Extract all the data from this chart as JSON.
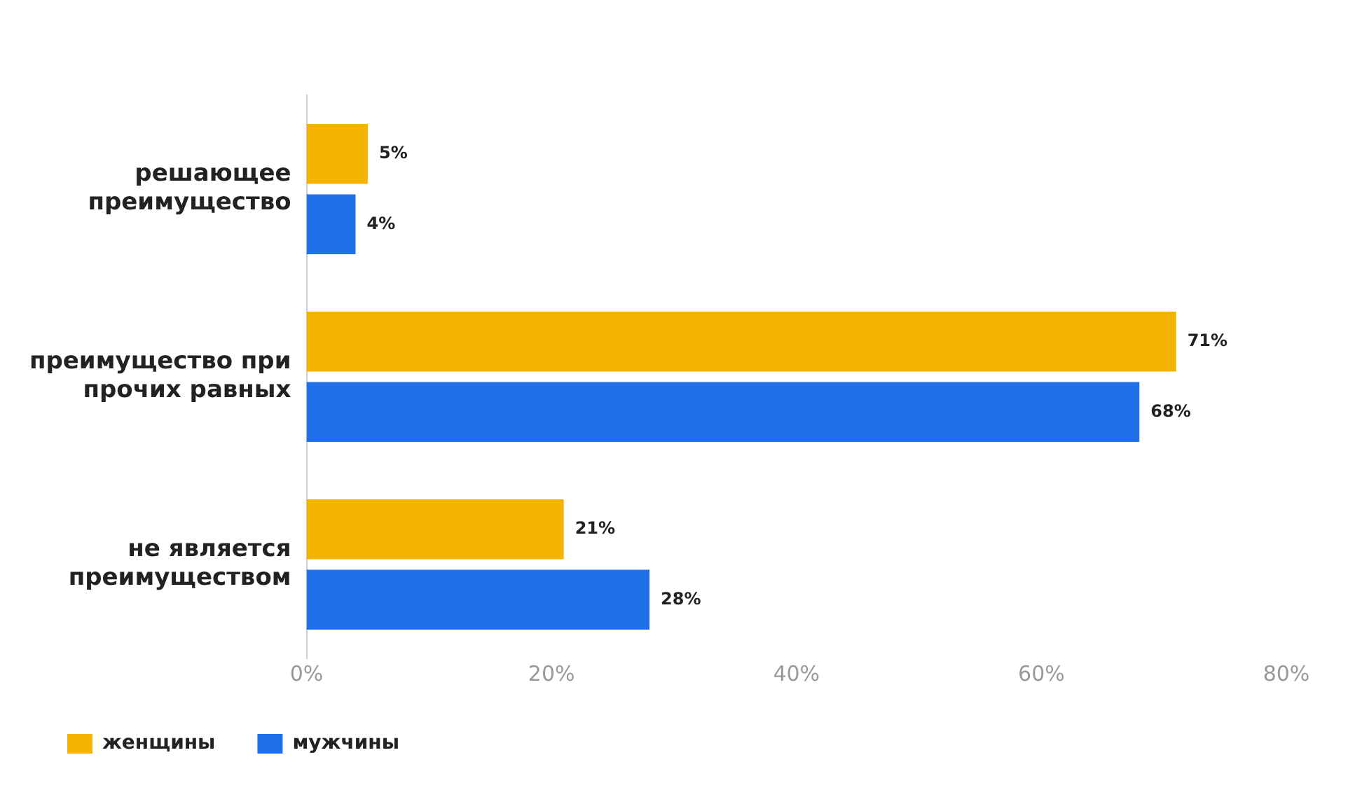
{
  "chart_data": {
    "type": "bar",
    "orientation": "horizontal",
    "categories": [
      "решающее преимущество",
      "преимущество при прочих равных",
      "не является преимуществом"
    ],
    "series": [
      {
        "name": "женщины",
        "color": "#f5b400",
        "values": [
          5,
          71,
          21
        ],
        "value_labels": [
          "5%",
          "71%",
          "21%"
        ]
      },
      {
        "name": "мужчины",
        "color": "#1f6fe8",
        "values": [
          4,
          68,
          28
        ],
        "value_labels": [
          "4%",
          "68%",
          "28%"
        ]
      }
    ],
    "xlim": [
      0,
      80
    ],
    "xticks": [
      {
        "value": 0,
        "label": "0%"
      },
      {
        "value": 20,
        "label": "20%"
      },
      {
        "value": 40,
        "label": "40%"
      },
      {
        "value": 60,
        "label": "60%"
      },
      {
        "value": 80,
        "label": "80%"
      }
    ],
    "grid": false,
    "legend": "bottom left"
  }
}
